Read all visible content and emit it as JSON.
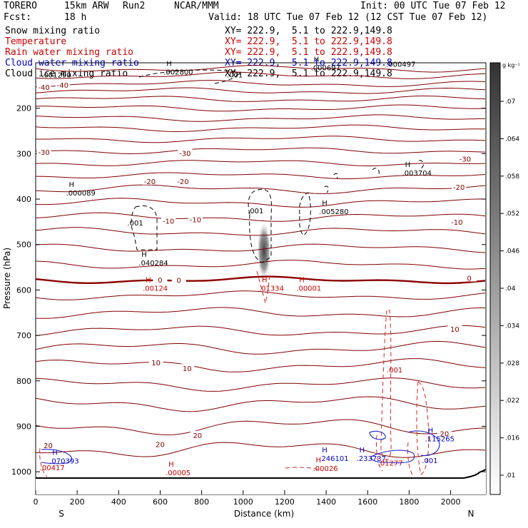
{
  "header": {
    "model": "TORERO",
    "res": "15km ARW",
    "run": "Run2",
    "org": "NCAR/MMM",
    "init": "Init: 00 UTC Tue 07 Feb 12",
    "fcst": "Fcst:",
    "fcst_val": "18 h",
    "valid": "Valid: 18 UTC Tue 07 Feb 12 (12 CST Tue 07 Feb 12)"
  },
  "fields": [
    {
      "name": "Snow mixing ratio",
      "xy": "XY= 222.9,  5.1 to 222.9,149.8",
      "color": "#000000"
    },
    {
      "name": "Temperature",
      "xy": "XY= 222.9,  5.1 to 222.9,149.8",
      "color": "#cc0000"
    },
    {
      "name": "Rain water mixing ratio",
      "xy": "XY= 222.9,  5.1 to 222.9,149.8",
      "color": "#cc0000"
    },
    {
      "name": "Cloud water mixing ratio",
      "xy": "XY= 222.9,  5.1 to 222.9,149.8",
      "color": "#0000cc"
    },
    {
      "name": "Cloud ice mixing ratio",
      "xy": "XY= 222.9,  5.1 to 222.9,149.8",
      "color": "#000000"
    }
  ],
  "chart_data": {
    "type": "cross-section",
    "xlabel": "Distance (km)",
    "ylabel": "Pressure (hPa)",
    "xlim": [
      0,
      2170
    ],
    "x_ticks": [
      0,
      200,
      400,
      600,
      800,
      1000,
      1200,
      1400,
      1600,
      1800,
      2000
    ],
    "y_ticks": [
      200,
      300,
      400,
      500,
      600,
      700,
      800,
      900,
      1000
    ],
    "ylim": [
      100,
      1050
    ],
    "end_labels": {
      "left": "S",
      "right": "N"
    },
    "colorbar": {
      "unit": "g kg⁻¹",
      "ticks": [
        ".07",
        ".064",
        ".058",
        ".052",
        ".046",
        ".04",
        ".034",
        ".028",
        ".022",
        ".016",
        ".01"
      ]
    },
    "isotherms": [
      {
        "p": 113,
        "amp": 3
      },
      {
        "p": 128,
        "amp": 3
      },
      {
        "p": 146,
        "amp": 3
      },
      {
        "p": 162,
        "amp": 3
      },
      {
        "p": 180,
        "amp": 3
      },
      {
        "p": 200,
        "amp": 3
      },
      {
        "p": 222,
        "amp": 3
      },
      {
        "p": 244,
        "amp": 3
      },
      {
        "p": 268,
        "amp": 3
      },
      {
        "p": 293,
        "amp": 3
      },
      {
        "p": 320,
        "amp": 3
      },
      {
        "p": 348,
        "amp": 3
      },
      {
        "p": 378,
        "amp": 4
      },
      {
        "p": 408,
        "amp": 4
      },
      {
        "p": 440,
        "amp": 4
      },
      {
        "p": 472,
        "amp": 4
      },
      {
        "p": 508,
        "amp": 4
      },
      {
        "p": 544,
        "amp": 4
      },
      {
        "p": 578,
        "amp": 3,
        "bold": true
      },
      {
        "p": 612,
        "amp": 4
      },
      {
        "p": 650,
        "amp": 5
      },
      {
        "p": 690,
        "amp": 5
      },
      {
        "p": 728,
        "amp": 6
      },
      {
        "p": 766,
        "amp": 6
      },
      {
        "p": 808,
        "amp": 6
      },
      {
        "p": 850,
        "amp": 7
      },
      {
        "p": 900,
        "amp": 8
      },
      {
        "p": 950,
        "amp": 8
      }
    ],
    "temp_labels": [
      {
        "text": "-40",
        "x": 130,
        "p": 150
      },
      {
        "text": "-40",
        "x": 40,
        "p": 155
      },
      {
        "text": "-30",
        "x": 40,
        "p": 298
      },
      {
        "text": "-30",
        "x": 720,
        "p": 300
      },
      {
        "text": "-30",
        "x": 2070,
        "p": 313
      },
      {
        "text": "-20",
        "x": 550,
        "p": 362
      },
      {
        "text": "-20",
        "x": 710,
        "p": 362
      },
      {
        "text": "-20",
        "x": 2040,
        "p": 375
      },
      {
        "text": "-10",
        "x": 640,
        "p": 449
      },
      {
        "text": "-10",
        "x": 770,
        "p": 446
      },
      {
        "text": "-10",
        "x": 2030,
        "p": 452
      },
      {
        "text": "0",
        "x": 600,
        "p": 579
      },
      {
        "text": "0",
        "x": 690,
        "p": 580
      },
      {
        "text": "0",
        "x": 2090,
        "p": 575
      },
      {
        "text": "10",
        "x": 580,
        "p": 761
      },
      {
        "text": "10",
        "x": 730,
        "p": 774
      },
      {
        "text": "10",
        "x": 2020,
        "p": 687
      },
      {
        "text": "20",
        "x": 780,
        "p": 921
      },
      {
        "text": "20",
        "x": 600,
        "p": 941
      },
      {
        "text": "20",
        "x": 1970,
        "p": 917
      },
      {
        "text": "20",
        "x": 60,
        "p": 943
      }
    ],
    "annotations": [
      {
        "text": ".001290",
        "x": 100,
        "p": 126,
        "color": "#000000"
      },
      {
        "text": "H .002800",
        "x": 630,
        "p": 118,
        "color": "#000000"
      },
      {
        "text": ".001",
        "x": 960,
        "p": 126,
        "color": "#000000"
      },
      {
        "text": "H .000697",
        "x": 1340,
        "p": 109,
        "color": "#000000"
      },
      {
        "text": ".000497",
        "x": 1760,
        "p": 102,
        "color": "#000000"
      },
      {
        "text": "H .003704",
        "x": 1780,
        "p": 340,
        "color": "#000000"
      },
      {
        "text": "H .000089",
        "x": 160,
        "p": 384,
        "color": "#000000"
      },
      {
        "text": "H .005280",
        "x": 1380,
        "p": 425,
        "color": "#000000"
      },
      {
        "text": ".001",
        "x": 480,
        "p": 452,
        "color": "#000000"
      },
      {
        "text": ".001",
        "x": 1060,
        "p": 425,
        "color": "#000000"
      },
      {
        "text": "H .040284",
        "x": 510,
        "p": 538,
        "color": "#000000"
      },
      {
        "text": "H .00124",
        "x": 530,
        "p": 594,
        "color": "#cc0000"
      },
      {
        "text": "H .01334",
        "x": 1090,
        "p": 594,
        "color": "#cc0000"
      },
      {
        "text": "H .00001",
        "x": 1270,
        "p": 594,
        "color": "#cc0000"
      },
      {
        "text": ".001",
        "x": 1730,
        "p": 775,
        "color": "#cc0000"
      },
      {
        "text": "H .115265",
        "x": 1890,
        "p": 925,
        "color": "#0000cc"
      },
      {
        "text": "H .246101",
        "x": 1380,
        "p": 968,
        "color": "#0000cc"
      },
      {
        "text": "H .233737",
        "x": 1560,
        "p": 968,
        "color": "#0000cc"
      },
      {
        "text": ".01277",
        "x": 1710,
        "p": 980,
        "color": "#cc0000"
      },
      {
        "text": ".001",
        "x": 1900,
        "p": 975,
        "color": "#0000cc"
      },
      {
        "text": "H .070393",
        "x": 80,
        "p": 974,
        "color": "#0000cc"
      },
      {
        "text": ".00417",
        "x": 80,
        "p": 990,
        "color": "#cc0000"
      },
      {
        "text": "H .00005",
        "x": 640,
        "p": 1000,
        "color": "#cc0000"
      },
      {
        "text": "H .00026",
        "x": 1350,
        "p": 990,
        "color": "#cc0000"
      }
    ]
  }
}
